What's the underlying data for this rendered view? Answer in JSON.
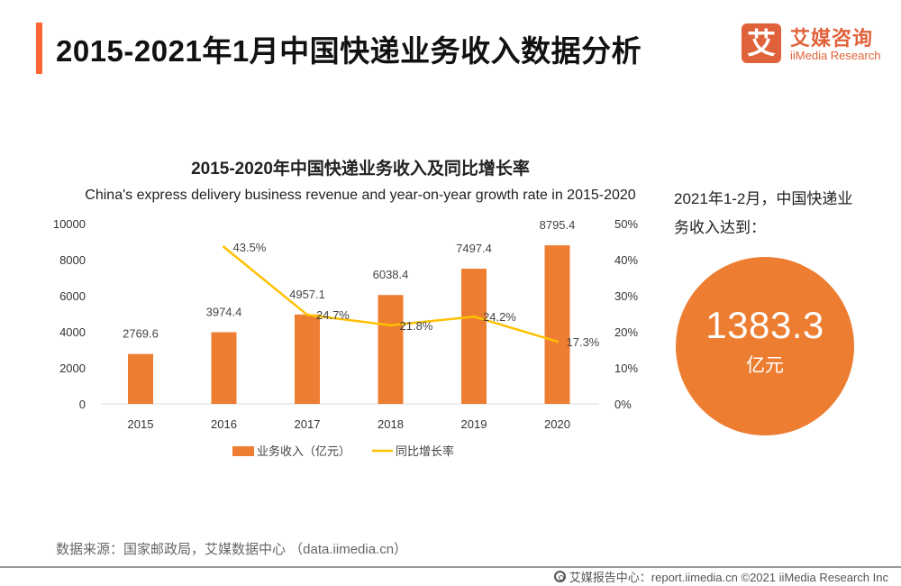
{
  "header": {
    "title": "2015-2021年1月中国快递业务收入数据分析",
    "accent_color": "#ff6633"
  },
  "logo": {
    "mark": "艾",
    "name_cn": "艾媒咨询",
    "name_en": "iiMedia Research",
    "color": "#e0623a"
  },
  "chart_data": {
    "type": "bar",
    "title": "2015-2020年中国快递业务收入及同比增长率",
    "subtitle": "China's express delivery business revenue and year-on-year growth rate in 2015-2020",
    "categories": [
      "2015",
      "2016",
      "2017",
      "2018",
      "2019",
      "2020"
    ],
    "series": [
      {
        "name": "业务收入（亿元）",
        "type": "bar",
        "axis": "left",
        "color": "#ed7d31",
        "values": [
          2769.6,
          3974.4,
          4957.1,
          6038.4,
          7497.4,
          8795.4
        ],
        "labels": [
          "2769.6",
          "3974.4",
          "4957.1",
          "6038.4",
          "7497.4",
          "8795.4"
        ]
      },
      {
        "name": "同比增长率",
        "type": "line",
        "axis": "right",
        "color": "#ffc000",
        "values": [
          null,
          43.5,
          24.7,
          21.8,
          24.2,
          17.3
        ],
        "labels": [
          null,
          "43.5%",
          "24.7%",
          "21.8%",
          "24.2%",
          "17.3%"
        ]
      }
    ],
    "y_left": {
      "ylim": [
        0,
        10000
      ],
      "ticks": [
        0,
        2000,
        4000,
        6000,
        8000,
        10000
      ],
      "tick_labels": [
        "0",
        "2000",
        "4000",
        "6000",
        "8000",
        "10000"
      ]
    },
    "y_right": {
      "ylim": [
        0,
        50
      ],
      "ticks": [
        0,
        10,
        20,
        30,
        40,
        50
      ],
      "tick_labels": [
        "0%",
        "10%",
        "20%",
        "30%",
        "40%",
        "50%"
      ]
    },
    "xlabel": "",
    "ylabel": "",
    "grid": false,
    "legend_position": "bottom"
  },
  "highlight": {
    "text": "2021年1-2月，中国快递业务收入达到：",
    "value": "1383.3",
    "unit": "亿元",
    "color": "#ed7d31"
  },
  "source": "数据来源：国家邮政局，艾媒数据中心 （data.iimedia.cn）",
  "footer": {
    "icon": "globe-icon",
    "text": "艾媒报告中心：report.iimedia.cn   ©2021  iiMedia Research  Inc"
  }
}
